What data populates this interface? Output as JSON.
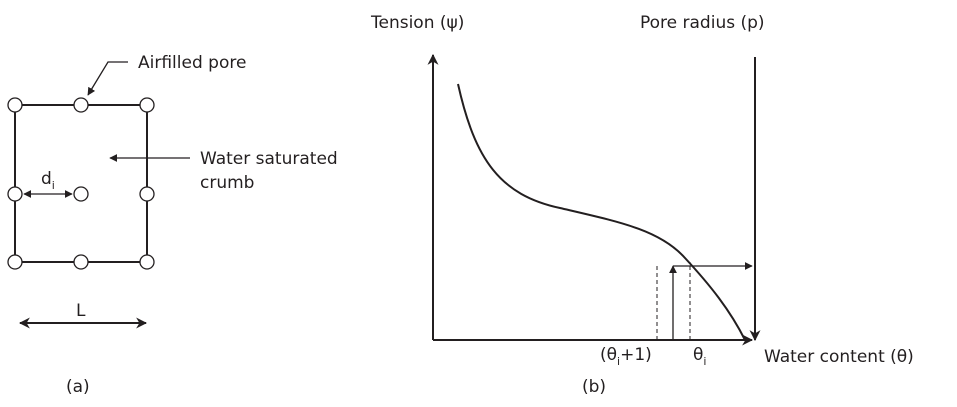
{
  "panel_a": {
    "pore_label": "Airfilled pore",
    "crumb_line1": "Water saturated",
    "crumb_line2": "crumb",
    "distance": "d",
    "distance_sub": "i",
    "length": "L",
    "caption": "(a)"
  },
  "panel_b": {
    "y_axis_label": "Tension (ψ)",
    "right_axis_label": "Pore radius (p)",
    "x_axis_label": "Water content (θ)",
    "theta_next_open": "(θ",
    "theta_next_sub": "i",
    "theta_next_close": "+1)",
    "theta": "θ",
    "theta_sub": "i",
    "caption": "(b)"
  }
}
